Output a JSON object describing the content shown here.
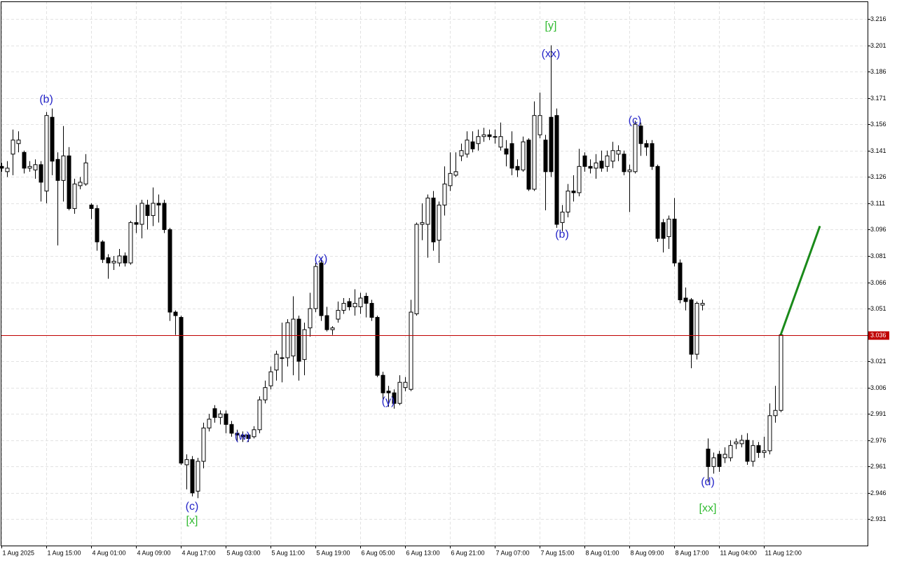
{
  "chart_data": {
    "type": "candlestick",
    "categories": [
      "1 Aug 2025",
      null,
      null,
      null,
      null,
      null,
      null,
      null,
      "1 Aug 15:00",
      null,
      null,
      null,
      null,
      null,
      null,
      null,
      "4 Aug 01:00",
      null,
      null,
      null,
      null,
      null,
      null,
      null,
      "4 Aug 09:00",
      null,
      null,
      null,
      null,
      null,
      null,
      null,
      "4 Aug 17:00",
      null,
      null,
      null,
      null,
      null,
      null,
      null,
      "5 Aug 03:00",
      null,
      null,
      null,
      null,
      null,
      null,
      null,
      "5 Aug 11:00",
      null,
      null,
      null,
      null,
      null,
      null,
      null,
      "5 Aug 19:00",
      null,
      null,
      null,
      null,
      null,
      null,
      null,
      "6 Aug 05:00",
      null,
      null,
      null,
      null,
      null,
      null,
      null,
      "6 Aug 13:00",
      null,
      null,
      null,
      null,
      null,
      null,
      null,
      "6 Aug 21:00",
      null,
      null,
      null,
      null,
      null,
      null,
      null,
      "7 Aug 07:00",
      null,
      null,
      null,
      null,
      null,
      null,
      null,
      "7 Aug 15:00",
      null,
      null,
      null,
      null,
      null,
      null,
      null,
      "8 Aug 01:00",
      null,
      null,
      null,
      null,
      null,
      null,
      null,
      "8 Aug 09:00",
      null,
      null,
      null,
      null,
      null,
      null,
      null,
      "8 Aug 17:00",
      null,
      null,
      null,
      null,
      null,
      null,
      null,
      "11 Aug 04:00",
      null,
      null,
      null,
      null,
      null,
      null,
      null,
      "11 Aug 12:00",
      null,
      null,
      null
    ],
    "open": [
      3.132,
      3.129,
      3.139,
      3.145,
      3.14,
      3.131,
      3.13,
      3.133,
      3.118,
      3.16,
      3.136,
      3.124,
      3.138,
      3.108,
      3.121,
      3.122,
      3.11,
      3.108,
      3.089,
      3.08,
      3.077,
      3.077,
      3.081,
      3.077,
      3.1,
      3.099,
      3.11,
      3.104,
      3.111,
      3.111,
      3.096,
      3.049,
      3.046,
      2.962,
      2.965,
      2.947,
      2.964,
      2.983,
      2.994,
      2.989,
      2.991,
      2.985,
      2.98,
      2.979,
      2.979,
      2.978,
      2.982,
      2.999,
      3.007,
      3.016,
      3.023,
      3.023,
      3.024,
      3.045,
      3.022,
      3.04,
      3.051,
      3.077,
      3.047,
      3.039,
      3.045,
      3.05,
      3.055,
      3.052,
      3.052,
      3.058,
      3.054,
      3.046,
      3.013,
      3.004,
      3.003,
      2.997,
      3.006,
      3.005,
      3.048,
      3.099,
      3.099,
      3.114,
      3.09,
      3.11,
      3.121,
      3.127,
      3.138,
      3.139,
      3.146,
      3.145,
      3.149,
      3.15,
      3.149,
      3.143,
      3.142,
      3.145,
      3.132,
      3.13,
      3.147,
      3.119,
      3.15,
      3.147,
      3.16,
      3.161,
      3.1,
      3.106,
      3.118,
      3.117,
      3.138,
      3.132,
      3.131,
      3.135,
      3.132,
      3.135,
      3.139,
      3.139,
      3.129,
      3.129,
      3.155,
      3.145,
      3.145,
      3.132,
      3.1,
      3.092,
      3.102,
      3.077,
      3.057,
      3.056,
      3.025,
      3.053,
      2.971,
      2.961,
      2.968,
      2.966,
      2.966,
      2.974,
      2.974,
      2.976,
      2.964,
      2.973,
      2.969,
      2.97,
      2.99,
      2.993
    ],
    "high": [
      3.134,
      3.135,
      3.153,
      3.152,
      3.141,
      3.135,
      3.136,
      3.135,
      3.163,
      3.165,
      3.14,
      3.155,
      3.143,
      3.125,
      3.126,
      3.139,
      3.111,
      3.11,
      3.09,
      3.082,
      3.081,
      3.085,
      3.083,
      3.101,
      3.11,
      3.113,
      3.113,
      3.12,
      3.116,
      3.113,
      3.097,
      3.05,
      3.047,
      2.968,
      2.967,
      2.966,
      2.986,
      2.991,
      2.996,
      2.993,
      2.993,
      2.987,
      2.982,
      2.981,
      2.98,
      2.984,
      3.001,
      3.01,
      3.018,
      3.027,
      3.043,
      3.045,
      3.058,
      3.047,
      3.043,
      3.06,
      3.077,
      3.08,
      3.052,
      3.041,
      3.055,
      3.057,
      3.057,
      3.062,
      3.06,
      3.06,
      3.056,
      3.047,
      3.015,
      3.007,
      3.005,
      3.013,
      3.012,
      3.056,
      3.1,
      3.111,
      3.116,
      3.118,
      3.112,
      3.132,
      3.14,
      3.14,
      3.145,
      3.152,
      3.152,
      3.153,
      3.154,
      3.153,
      3.153,
      3.157,
      3.147,
      3.152,
      3.136,
      3.149,
      3.148,
      3.169,
      3.174,
      3.15,
      3.201,
      3.165,
      3.11,
      3.122,
      3.127,
      3.142,
      3.14,
      3.136,
      3.139,
      3.141,
      3.141,
      3.146,
      3.144,
      3.141,
      3.133,
      3.158,
      3.157,
      3.147,
      3.147,
      3.133,
      3.102,
      3.104,
      3.114,
      3.079,
      3.063,
      3.057,
      3.055,
      3.056,
      2.977,
      2.969,
      2.97,
      2.972,
      2.976,
      2.977,
      2.979,
      2.98,
      2.976,
      2.975,
      2.978,
      2.997,
      3.007,
      3.036
    ],
    "low": [
      3.129,
      3.126,
      3.127,
      3.14,
      3.128,
      3.129,
      3.125,
      3.112,
      3.111,
      3.127,
      3.087,
      3.112,
      3.107,
      3.105,
      3.119,
      3.121,
      3.102,
      3.084,
      3.077,
      3.068,
      3.073,
      3.075,
      3.075,
      3.076,
      3.094,
      3.091,
      3.096,
      3.098,
      3.1,
      3.094,
      3.044,
      3.036,
      2.962,
      2.948,
      2.944,
      2.943,
      2.96,
      2.981,
      2.986,
      2.985,
      2.98,
      2.978,
      2.975,
      2.975,
      2.975,
      2.977,
      2.98,
      2.997,
      3.005,
      3.01,
      3.009,
      3.018,
      3.013,
      3.01,
      3.013,
      3.035,
      3.049,
      3.044,
      3.038,
      3.036,
      3.043,
      3.048,
      3.05,
      3.047,
      3.048,
      3.046,
      3.044,
      3.012,
      2.997,
      2.995,
      2.994,
      2.996,
      3.004,
      3.004,
      3.047,
      3.09,
      3.08,
      3.084,
      3.077,
      3.104,
      3.118,
      3.126,
      3.135,
      3.137,
      3.14,
      3.141,
      3.146,
      3.147,
      3.145,
      3.141,
      3.132,
      3.127,
      3.126,
      3.129,
      3.118,
      3.118,
      3.148,
      3.107,
      3.126,
      3.097,
      3.095,
      3.103,
      3.112,
      3.115,
      3.129,
      3.128,
      3.125,
      3.129,
      3.129,
      3.131,
      3.135,
      3.127,
      3.106,
      3.128,
      3.138,
      3.138,
      3.13,
      3.089,
      3.083,
      3.085,
      3.075,
      3.054,
      3.05,
      3.017,
      3.022,
      3.05,
      2.952,
      2.957,
      2.958,
      2.963,
      2.964,
      2.971,
      2.972,
      2.962,
      2.961,
      2.966,
      2.966,
      2.968,
      2.986,
      2.992
    ],
    "close": [
      3.131,
      3.131,
      3.147,
      3.147,
      3.131,
      3.132,
      3.133,
      3.123,
      3.161,
      3.135,
      3.124,
      3.138,
      3.108,
      3.122,
      3.123,
      3.134,
      3.108,
      3.089,
      3.079,
      3.077,
      3.078,
      3.081,
      3.077,
      3.1,
      3.099,
      3.111,
      3.104,
      3.111,
      3.11,
      3.096,
      3.049,
      3.047,
      2.963,
      2.965,
      2.946,
      2.964,
      2.983,
      2.988,
      2.989,
      2.991,
      2.985,
      2.98,
      2.979,
      2.978,
      2.977,
      2.982,
      2.999,
      3.006,
      3.015,
      3.025,
      3.023,
      3.043,
      3.045,
      3.021,
      3.039,
      3.051,
      3.075,
      3.047,
      3.039,
      3.04,
      3.05,
      3.054,
      3.052,
      3.054,
      3.057,
      3.054,
      3.046,
      3.013,
      3.003,
      3.003,
      2.997,
      3.009,
      3.009,
      3.049,
      3.099,
      3.1,
      3.114,
      3.089,
      3.11,
      3.122,
      3.128,
      3.129,
      3.141,
      3.147,
      3.142,
      3.149,
      3.15,
      3.149,
      3.149,
      3.149,
      3.139,
      3.131,
      3.13,
      3.146,
      3.119,
      3.161,
      3.161,
      3.129,
      3.129,
      3.099,
      3.106,
      3.118,
      3.117,
      3.132,
      3.132,
      3.131,
      3.134,
      3.131,
      3.138,
      3.141,
      3.141,
      3.129,
      3.13,
      3.156,
      3.145,
      3.143,
      3.132,
      3.091,
      3.091,
      3.102,
      3.077,
      3.056,
      3.055,
      3.025,
      3.054,
      3.054,
      2.961,
      2.966,
      2.961,
      2.968,
      2.973,
      2.975,
      2.976,
      2.964,
      2.973,
      2.969,
      2.97,
      2.99,
      2.993,
      3.036
    ],
    "up_color": "#ffffff",
    "down_color": "#000000",
    "ylim": [
      2.916,
      3.226
    ],
    "yticks": [
      3.216,
      3.201,
      3.186,
      3.171,
      3.156,
      3.141,
      3.126,
      3.111,
      3.096,
      3.081,
      3.066,
      3.051,
      3.036,
      3.021,
      3.006,
      2.991,
      2.976,
      2.961,
      2.946,
      2.931
    ],
    "grid": true,
    "current_price": 3.036,
    "current_price_color": "#c00000",
    "annotations": [
      {
        "text": "(b)",
        "index": 8,
        "price": 3.17,
        "color": "#2525c8"
      },
      {
        "text": "(c)",
        "index": 34,
        "price": 2.938,
        "color": "#2525c8"
      },
      {
        "text": "[x]",
        "index": 34,
        "price": 2.93,
        "color": "#33bb33"
      },
      {
        "text": "(w)",
        "index": 43,
        "price": 2.978,
        "color": "#2525c8"
      },
      {
        "text": "(x)",
        "index": 57,
        "price": 3.079,
        "color": "#2525c8"
      },
      {
        "text": "(y)",
        "index": 69,
        "price": 2.998,
        "color": "#2525c8"
      },
      {
        "text": "(xx)",
        "index": 98,
        "price": 3.196,
        "color": "#2525c8"
      },
      {
        "text": "[y]",
        "index": 98,
        "price": 3.212,
        "color": "#33bb33"
      },
      {
        "text": "(b)",
        "index": 100,
        "price": 3.093,
        "color": "#2525c8"
      },
      {
        "text": "(c)",
        "index": 113,
        "price": 3.158,
        "color": "#2525c8"
      },
      {
        "text": "(d)",
        "index": 126,
        "price": 2.952,
        "color": "#2525c8"
      },
      {
        "text": "[xx]",
        "index": 126,
        "price": 2.937,
        "color": "#33bb33"
      }
    ],
    "forecast": {
      "x": [
        139,
        146
      ],
      "y": [
        3.036,
        3.098
      ],
      "color": "#1a8a1a"
    }
  }
}
